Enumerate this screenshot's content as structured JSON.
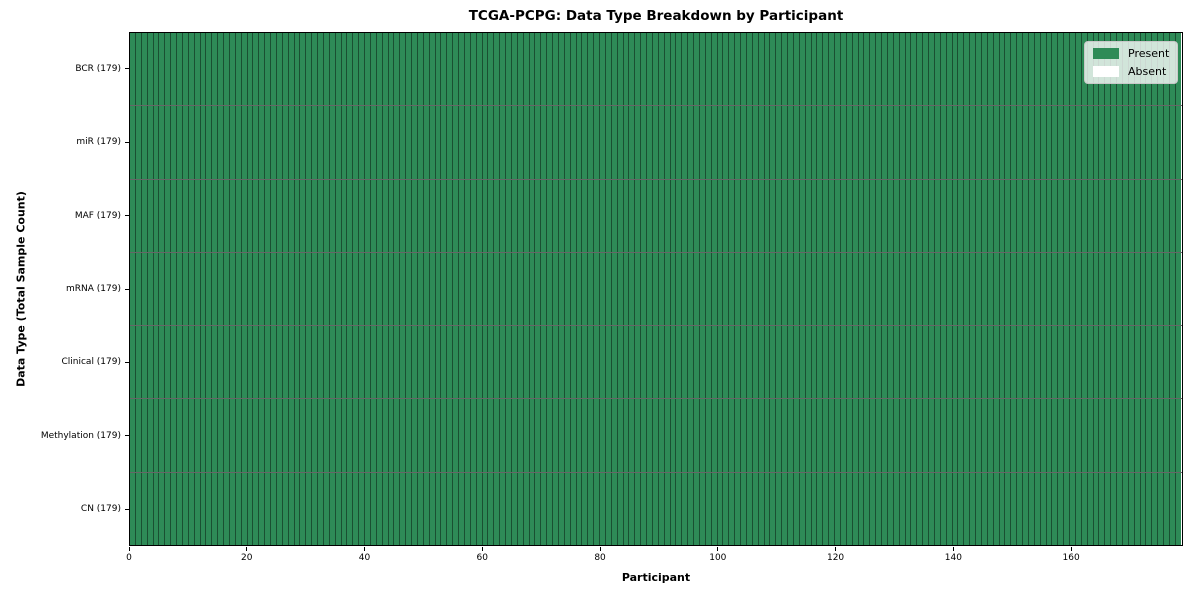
{
  "title": "TCGA-PCPG: Data Type Breakdown by Participant",
  "chart_data": {
    "type": "heatmap",
    "title": "TCGA-PCPG: Data Type Breakdown by Participant",
    "xlabel": "Participant",
    "ylabel": "Data Type (Total Sample Count)",
    "xlim": [
      0,
      179
    ],
    "x_ticks": [
      0,
      20,
      40,
      60,
      80,
      100,
      120,
      140,
      160
    ],
    "n_participants": 179,
    "grid": true,
    "legend_position": "upper right",
    "rows": [
      {
        "label": "BCR (179)",
        "data_type": "BCR",
        "total_samples": 179,
        "present_count": 179,
        "absent_count": 0
      },
      {
        "label": "miR (179)",
        "data_type": "miR",
        "total_samples": 179,
        "present_count": 179,
        "absent_count": 0
      },
      {
        "label": "MAF (179)",
        "data_type": "MAF",
        "total_samples": 179,
        "present_count": 179,
        "absent_count": 0
      },
      {
        "label": "mRNA (179)",
        "data_type": "mRNA",
        "total_samples": 179,
        "present_count": 179,
        "absent_count": 0
      },
      {
        "label": "Clinical (179)",
        "data_type": "Clinical",
        "total_samples": 179,
        "present_count": 179,
        "absent_count": 0
      },
      {
        "label": "Methylation (179)",
        "data_type": "Methylation",
        "total_samples": 179,
        "present_count": 179,
        "absent_count": 0
      },
      {
        "label": "CN (179)",
        "data_type": "CN",
        "total_samples": 179,
        "present_count": 179,
        "absent_count": 0
      }
    ],
    "legend": [
      {
        "label": "Present",
        "color": "#2e8b57"
      },
      {
        "label": "Absent",
        "color": "#ffffff"
      }
    ],
    "colors": {
      "present": "#2e8b57",
      "absent": "#ffffff",
      "cell_edge": "rgba(0,0,0,0.42)",
      "row_divider": "rgba(0,0,0,0.60)",
      "axes": "#000000"
    }
  }
}
